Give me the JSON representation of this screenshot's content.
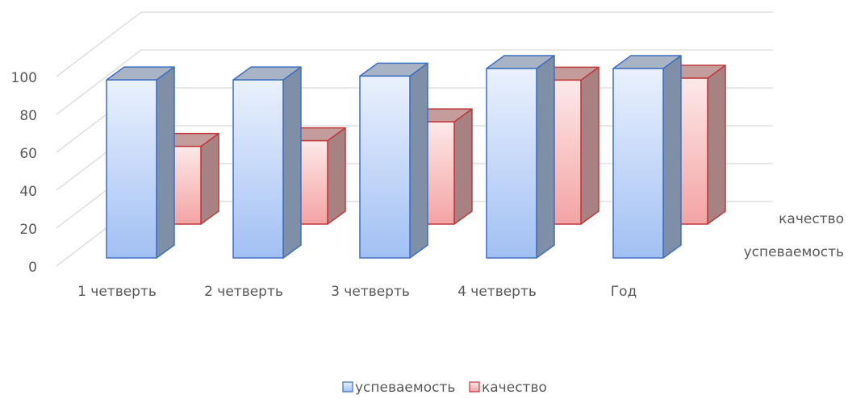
{
  "chart_data": {
    "type": "bar3d",
    "categories": [
      "1 четверть",
      "2 четверть",
      "3 четверть",
      "4 четверть",
      "Год"
    ],
    "series": [
      {
        "name": "успеваемость",
        "color": "#3f6fc0",
        "values": [
          94,
          94,
          96,
          100,
          100
        ]
      },
      {
        "name": "качество",
        "color": "#c0393b",
        "values": [
          41,
          44,
          54,
          76,
          77
        ]
      }
    ],
    "ylim": [
      0,
      100
    ],
    "yticks": [
      0,
      20,
      40,
      60,
      80,
      100
    ],
    "grid": true,
    "legend": "bottom"
  }
}
